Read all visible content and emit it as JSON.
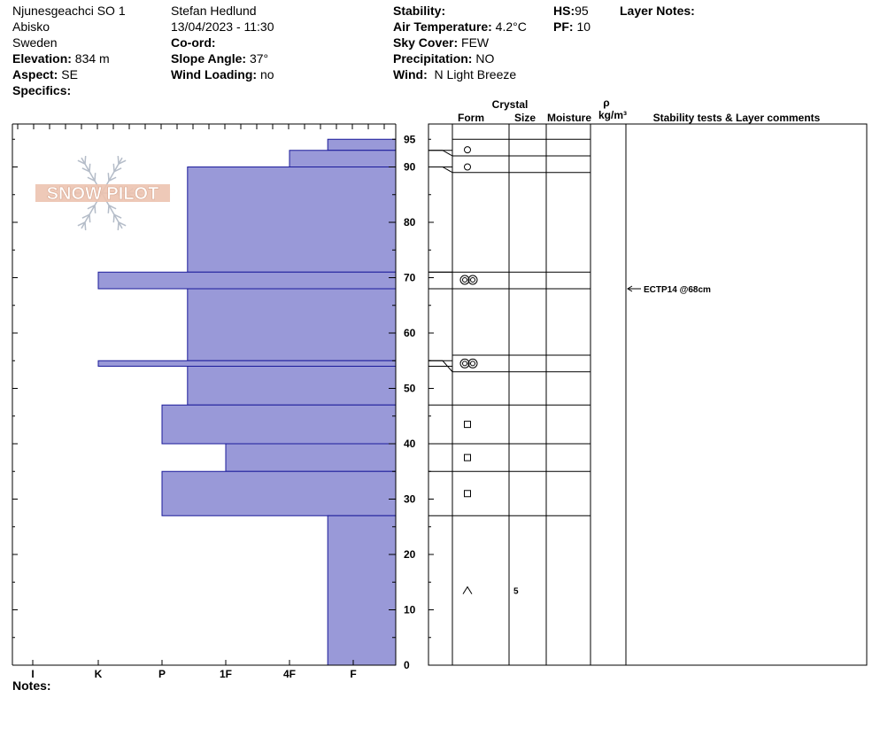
{
  "header": {
    "location": "Njunesgeachci SO 1",
    "region": "Abisko",
    "country": "Sweden",
    "elevation_label": "Elevation:",
    "elevation_value": "834 m",
    "aspect_label": "Aspect:",
    "aspect_value": "SE",
    "specifics_label": "Specifics:",
    "observer": "Stefan Hedlund",
    "datetime": "13/04/2023 - 11:30",
    "coord_label": "Co-ord:",
    "slope_label": "Slope Angle:",
    "slope_value": "37°",
    "wind_loading_label": "Wind Loading:",
    "wind_loading_value": "no",
    "stability_label": "Stability:",
    "air_temp_label": "Air Temperature:",
    "air_temp_value": "4.2°C",
    "sky_label": "Sky Cover:",
    "sky_value": "FEW",
    "precip_label": "Precipitation:",
    "precip_value": "NO",
    "wind_label": "Wind:",
    "wind_value": "N Light Breeze",
    "hs_label": "HS:",
    "hs_value": "95",
    "pf_label": "PF:",
    "pf_value": "10",
    "layer_notes_label": "Layer Notes:",
    "notes_label": "Notes:"
  },
  "logo_text": "SNOW PILOT",
  "columns": {
    "crystal": "Crystal",
    "form": "Form",
    "size": "Size",
    "moisture": "Moisture",
    "rho": "ρ",
    "density_unit": "kg/m³",
    "stability": "Stability tests & Layer comments"
  },
  "chart_data": {
    "type": "bar",
    "ylabel": "",
    "ylim": [
      0,
      97
    ],
    "y_ticks": [
      0,
      10,
      20,
      30,
      40,
      50,
      60,
      70,
      80,
      90,
      95
    ],
    "hardness_scale": [
      "I",
      "K",
      "P",
      "1F",
      "4F",
      "F"
    ],
    "hardness_levels": {
      "I": 5,
      "K": 4,
      "P": 3,
      "1F": 2,
      "4F": 1,
      "F": 0
    },
    "layers": [
      {
        "bottom": 93,
        "top": 95,
        "hardness": "F",
        "hardness_value": 0.4
      },
      {
        "bottom": 90,
        "top": 93,
        "hardness": "4F",
        "hardness_value": 1.0
      },
      {
        "bottom": 71,
        "top": 90,
        "hardness": "1F-P",
        "hardness_value": 2.6
      },
      {
        "bottom": 68,
        "top": 71,
        "hardness": "K",
        "hardness_value": 4.0
      },
      {
        "bottom": 55,
        "top": 68,
        "hardness": "1F-P",
        "hardness_value": 2.6
      },
      {
        "bottom": 54,
        "top": 55,
        "hardness": "K",
        "hardness_value": 4.0
      },
      {
        "bottom": 47,
        "top": 54,
        "hardness": "1F-P",
        "hardness_value": 2.6
      },
      {
        "bottom": 40,
        "top": 47,
        "hardness": "P",
        "hardness_value": 3.0
      },
      {
        "bottom": 35,
        "top": 40,
        "hardness": "1F",
        "hardness_value": 2.0
      },
      {
        "bottom": 27,
        "top": 35,
        "hardness": "P",
        "hardness_value": 3.0
      },
      {
        "bottom": 0,
        "top": 27,
        "hardness": "F",
        "hardness_value": 0.4
      }
    ],
    "grid_boundaries": [
      95,
      92,
      89,
      71,
      68,
      56,
      53,
      47,
      40,
      35,
      27
    ],
    "connectors": [
      {
        "left_low": 92,
        "left_high": 93
      },
      {
        "left_low": 89,
        "left_high": 90
      },
      {
        "left_low": 71,
        "left_high": 71
      },
      {
        "left_low": 53,
        "left_high": 55
      }
    ],
    "crystal_forms": [
      {
        "height": 93.1,
        "symbol": "rounded"
      },
      {
        "height": 90.0,
        "symbol": "rounded"
      },
      {
        "height": 69.6,
        "symbol": "melt-freeze"
      },
      {
        "height": 54.5,
        "symbol": "melt-freeze"
      },
      {
        "height": 43.5,
        "symbol": "faceted"
      },
      {
        "height": 37.5,
        "symbol": "faceted"
      },
      {
        "height": 31.0,
        "symbol": "faceted"
      },
      {
        "height": 13.5,
        "symbol": "depth-hoar",
        "size": "5"
      }
    ],
    "stability_tests": [
      {
        "height": 68,
        "text": "ECTP14 @68cm"
      }
    ]
  }
}
